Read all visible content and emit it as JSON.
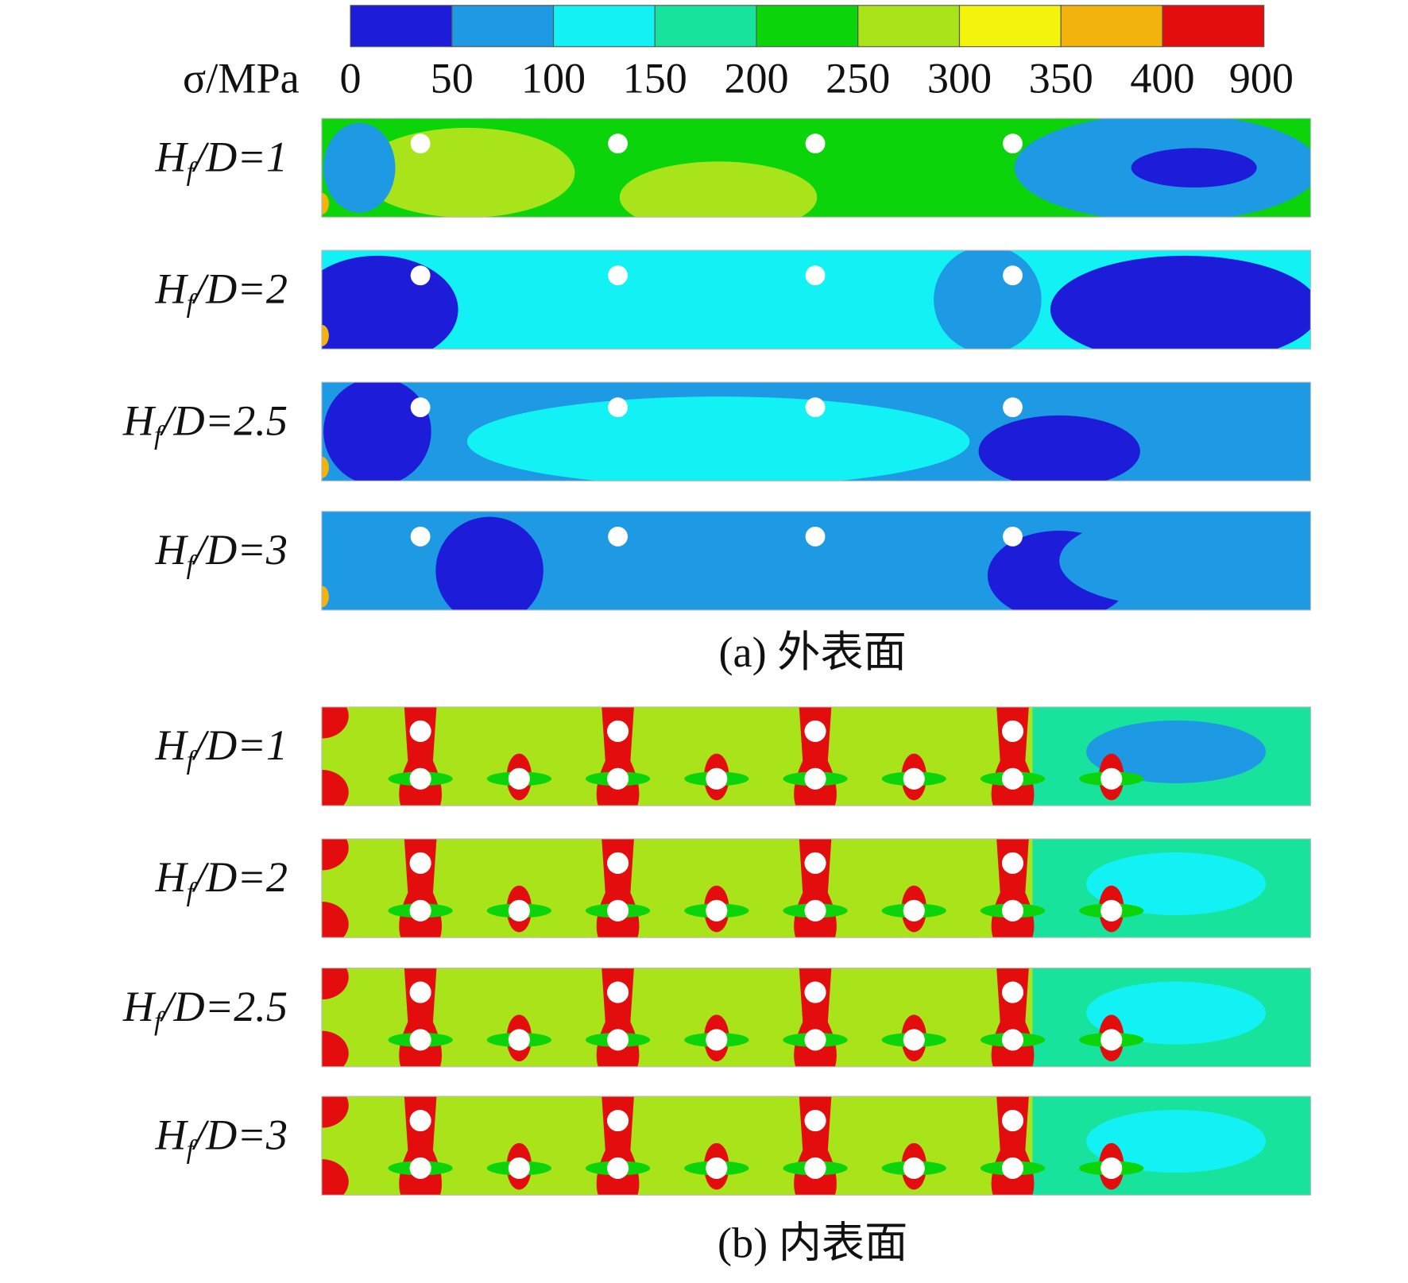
{
  "colorbar": {
    "label": "σ/MPa",
    "colors": [
      "#1c1cd9",
      "#1d9ae3",
      "#12f2f4",
      "#17e39c",
      "#0bd40b",
      "#a9e41a",
      "#f4f40d",
      "#f4b20d",
      "#e40d0d"
    ],
    "ticks": [
      0,
      50,
      100,
      150,
      200,
      250,
      300,
      350,
      400,
      900
    ]
  },
  "panels": [
    {
      "caption": "(a) 外表面",
      "rows": [
        {
          "symbol": "H",
          "sub": "f",
          "rest": "/D=1"
        },
        {
          "symbol": "H",
          "sub": "f",
          "rest": "/D=2"
        },
        {
          "symbol": "H",
          "sub": "f",
          "rest": "/D=2.5"
        },
        {
          "symbol": "H",
          "sub": "f",
          "rest": "/D=3"
        }
      ]
    },
    {
      "caption": "(b) 内表面",
      "rows": [
        {
          "symbol": "H",
          "sub": "f",
          "rest": "/D=1"
        },
        {
          "symbol": "H",
          "sub": "f",
          "rest": "/D=2"
        },
        {
          "symbol": "H",
          "sub": "f",
          "rest": "/D=2.5"
        },
        {
          "symbol": "H",
          "sub": "f",
          "rest": "/D=3"
        }
      ]
    }
  ]
}
